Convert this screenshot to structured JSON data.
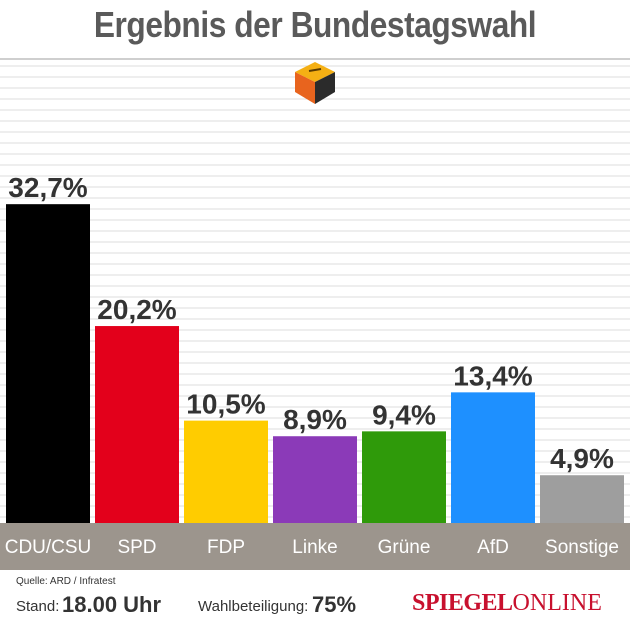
{
  "title": "Ergebnis der Bundestagswahl",
  "icon": "ballot-box-icon",
  "chart_data": {
    "type": "bar",
    "categories": [
      "CDU/CSU",
      "SPD",
      "FDP",
      "Linke",
      "Grüne",
      "AfD",
      "Sonstige"
    ],
    "values": [
      32.7,
      20.2,
      10.5,
      8.9,
      9.4,
      13.4,
      4.9
    ],
    "value_labels": [
      "32,7%",
      "20,2%",
      "10,5%",
      "8,9%",
      "9,4%",
      "13,4%",
      "4,9%"
    ],
    "colors": [
      "#000000",
      "#e3001b",
      "#ffcc00",
      "#8b3ab8",
      "#2f9a0a",
      "#1e90ff",
      "#9e9e9e"
    ],
    "ylim": [
      0,
      40
    ],
    "grid": true,
    "xlabel": "",
    "ylabel": ""
  },
  "footer": {
    "source": "Quelle: ARD / Infratest",
    "stand_label": "Stand:",
    "stand_value": "18.00 Uhr",
    "turnout_label": "Wahlbeteiligung:",
    "turnout_value": "75%",
    "brand_part1": "SPIEGEL",
    "brand_part2": "ONLINE"
  },
  "colors": {
    "title": "#5a5a5a",
    "label_band": "#9c958d",
    "brand": "#c8102e"
  }
}
